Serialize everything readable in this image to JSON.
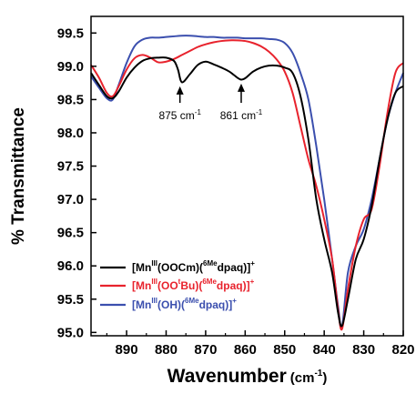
{
  "chart_data": {
    "type": "line",
    "title": "",
    "xlabel_main": "Wavenumber",
    "xlabel_unit": "(cm",
    "xlabel_unit_sup": "-1",
    "xlabel_unit_close": ")",
    "ylabel": "% Transmittance",
    "xlim": [
      899,
      820
    ],
    "ylim": [
      94.95,
      99.75
    ],
    "xticks": [
      890,
      880,
      870,
      860,
      850,
      840,
      830,
      820
    ],
    "yticks": [
      95.0,
      95.5,
      96.0,
      96.5,
      97.0,
      97.5,
      98.0,
      98.5,
      99.0,
      99.5
    ],
    "grid": false,
    "legend_position": "bottom-left",
    "series": [
      {
        "name": "[MnIII(OOCm)(6Medpaq)]+",
        "color": "#000000",
        "legend_parts": [
          {
            "t": "[Mn",
            "s": ""
          },
          {
            "t": "III",
            "s": "sup"
          },
          {
            "t": "(OOCm)(",
            "s": ""
          },
          {
            "t": "6Me",
            "s": "sup"
          },
          {
            "t": "dpaq)]",
            "s": ""
          },
          {
            "t": "+",
            "s": "sup"
          }
        ],
        "x": [
          899,
          897,
          895,
          893.5,
          892,
          890,
          888,
          886,
          884,
          882,
          880,
          878,
          877,
          876,
          874,
          872,
          870,
          868,
          866,
          864,
          862,
          861,
          860,
          858,
          856,
          854,
          852,
          850,
          848,
          846,
          844,
          842,
          840,
          838,
          836.5,
          835.5,
          834,
          832,
          830,
          828,
          826,
          824,
          822,
          820
        ],
        "y": [
          98.9,
          98.72,
          98.55,
          98.52,
          98.62,
          98.83,
          98.98,
          99.08,
          99.12,
          99.13,
          99.13,
          99.08,
          98.95,
          98.76,
          98.88,
          99.02,
          99.07,
          99.03,
          98.98,
          98.92,
          98.83,
          98.8,
          98.82,
          98.92,
          98.98,
          99.01,
          99.01,
          98.98,
          98.9,
          98.55,
          97.9,
          97.0,
          96.4,
          95.9,
          95.3,
          95.1,
          95.5,
          96.1,
          96.4,
          96.9,
          97.6,
          98.2,
          98.6,
          98.7
        ]
      },
      {
        "name": "[MnIII(OOtBu)(6Medpaq)]+",
        "color": "#e8232d",
        "legend_parts": [
          {
            "t": "[Mn",
            "s": ""
          },
          {
            "t": "III",
            "s": "sup"
          },
          {
            "t": "(OO",
            "s": ""
          },
          {
            "t": "t",
            "s": "sup"
          },
          {
            "t": "Bu)(",
            "s": ""
          },
          {
            "t": "6Me",
            "s": "sup"
          },
          {
            "t": "dpaq)]",
            "s": ""
          },
          {
            "t": "+",
            "s": "sup"
          }
        ],
        "x": [
          899,
          897,
          895,
          893.5,
          892,
          890,
          888,
          886,
          884,
          882,
          880,
          878,
          876,
          874,
          872,
          870,
          868,
          866,
          864,
          862,
          860,
          858,
          856,
          854,
          852,
          850,
          848,
          846,
          844,
          842,
          840,
          838,
          836.5,
          835.5,
          834,
          832,
          830,
          828,
          826,
          824,
          822,
          820
        ],
        "y": [
          99.02,
          98.83,
          98.6,
          98.55,
          98.7,
          98.95,
          99.12,
          99.17,
          99.13,
          99.06,
          99.07,
          99.11,
          99.17,
          99.23,
          99.29,
          99.33,
          99.36,
          99.38,
          99.39,
          99.39,
          99.38,
          99.35,
          99.3,
          99.22,
          99.1,
          98.92,
          98.6,
          98.1,
          97.6,
          97.2,
          96.7,
          96.1,
          95.35,
          95.05,
          95.65,
          96.3,
          96.7,
          96.85,
          97.5,
          98.3,
          98.9,
          99.05
        ]
      },
      {
        "name": "[MnIII(OH)(6Medpaq)]+",
        "color": "#3b4fae",
        "legend_parts": [
          {
            "t": "[Mn",
            "s": ""
          },
          {
            "t": "III",
            "s": "sup"
          },
          {
            "t": "(OH)(",
            "s": ""
          },
          {
            "t": "6Me",
            "s": "sup"
          },
          {
            "t": "dpaq)]",
            "s": ""
          },
          {
            "t": "+",
            "s": "sup"
          }
        ],
        "x": [
          899,
          897,
          895,
          893.5,
          892,
          890,
          888,
          886,
          884,
          882,
          880,
          878,
          876,
          874,
          872,
          870,
          868,
          866,
          864,
          862,
          860,
          858,
          856,
          854,
          852,
          850,
          848,
          846,
          844,
          842,
          840,
          838,
          836.5,
          835.5,
          834,
          832,
          830,
          828,
          826,
          824,
          822,
          820
        ],
        "y": [
          98.85,
          98.68,
          98.52,
          98.5,
          98.72,
          99.05,
          99.3,
          99.4,
          99.43,
          99.43,
          99.44,
          99.45,
          99.46,
          99.46,
          99.45,
          99.44,
          99.44,
          99.43,
          99.43,
          99.43,
          99.42,
          99.42,
          99.42,
          99.41,
          99.4,
          99.35,
          99.2,
          98.9,
          98.5,
          97.8,
          97.0,
          96.1,
          95.4,
          95.08,
          95.9,
          96.3,
          96.55,
          97.0,
          97.6,
          98.2,
          98.6,
          98.9
        ]
      }
    ],
    "annotations": [
      {
        "label": "875 cm",
        "sup": "-1",
        "x": 876.5,
        "tip_y": 98.74,
        "base_y": 98.45
      },
      {
        "label": "861 cm",
        "sup": "-1",
        "x": 861,
        "tip_y": 98.78,
        "base_y": 98.45
      }
    ]
  }
}
